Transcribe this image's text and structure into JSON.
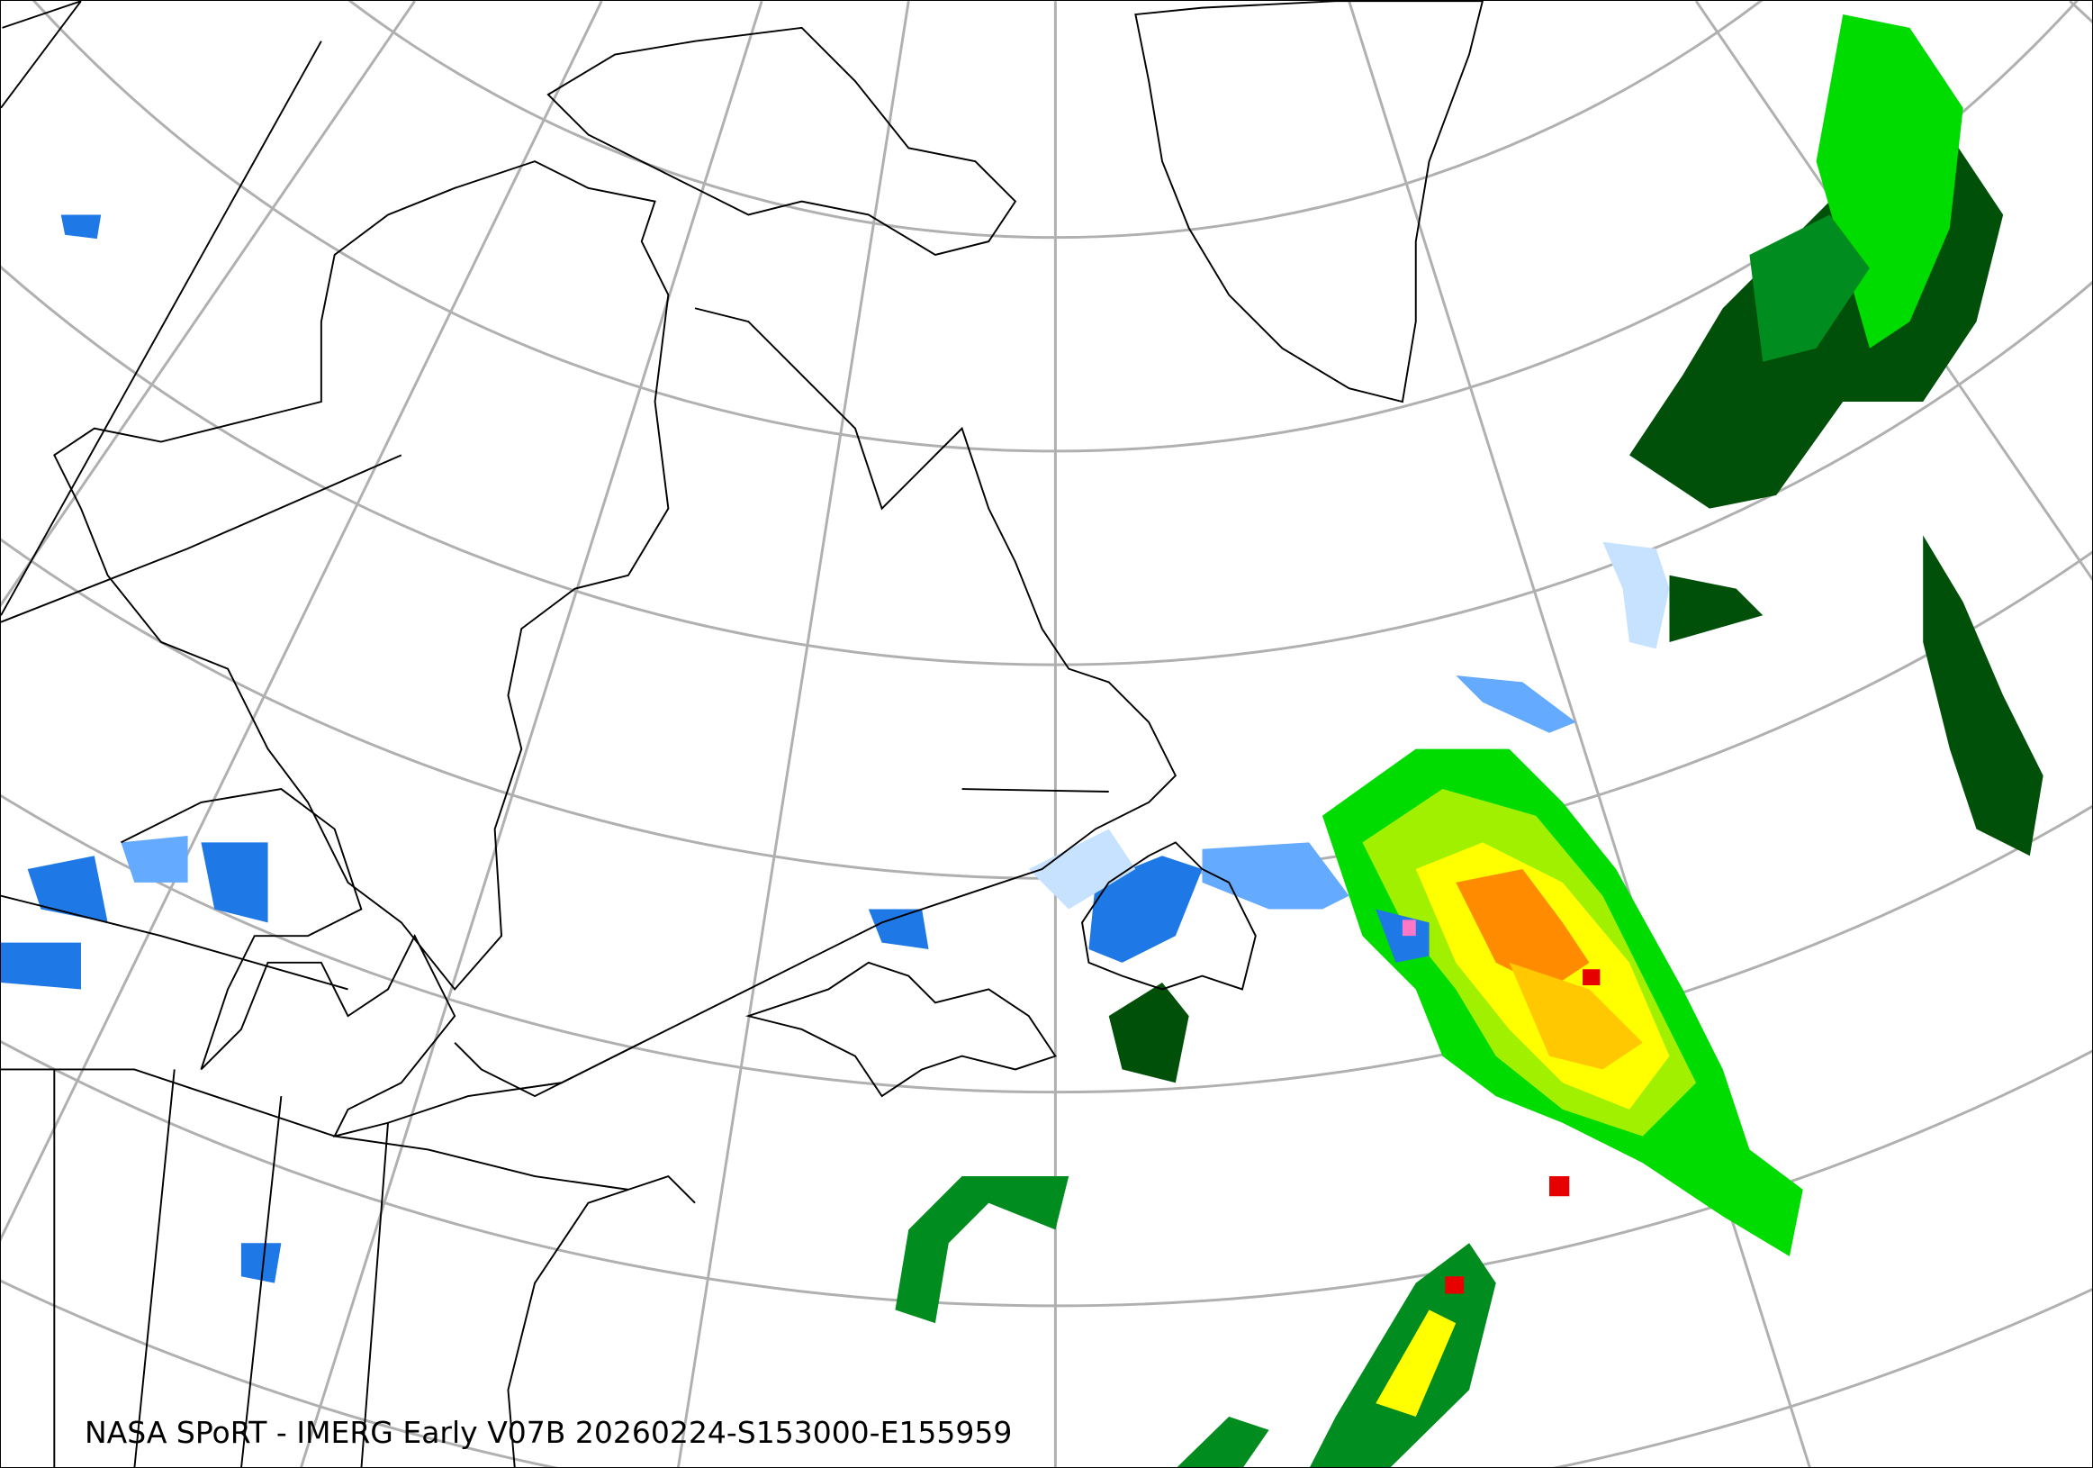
{
  "caption": "NASA SPoRT - IMERG Early V07B 20260224-S153000-E155959",
  "colors": {
    "graticule": "#b0b0b0",
    "coastline": "#000000",
    "precip_light_blue": "#c6e2ff",
    "precip_mid_blue": "#64aaff",
    "precip_blue": "#1e78e6",
    "precip_dark_green": "#00500a",
    "precip_green": "#008c1e",
    "precip_bright_green": "#00dc00",
    "precip_lime": "#a0f000",
    "precip_yellow": "#ffff00",
    "precip_gold": "#ffc800",
    "precip_orange": "#ff8c00",
    "precip_red": "#e60000",
    "precip_pink": "#ff78c8"
  }
}
